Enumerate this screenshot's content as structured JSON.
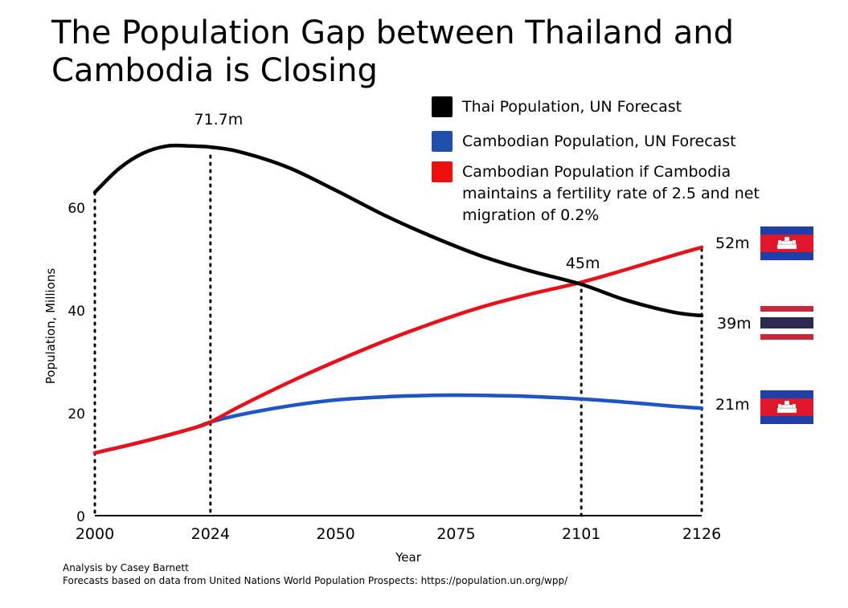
{
  "title": "The Population Gap between Thailand and Cambodia is Closing",
  "colors": {
    "thai": "#000000",
    "cambodia": "#1d55c4",
    "cambodia_alt": "#e8101a"
  },
  "legend": [
    {
      "label": "Thai Population, UN Forecast",
      "color": "#000000"
    },
    {
      "label": "Cambodian Population, UN Forecast",
      "color": "#1f4fa8"
    },
    {
      "label": "Cambodian Population if Cambodia maintains a fertility rate of 2.5 and net migration of 0.2%",
      "color": "#ee0f0f"
    }
  ],
  "chart_data": {
    "type": "line",
    "xlabel": "Year",
    "ylabel": "Population, Millions",
    "xlim": [
      2000,
      2126
    ],
    "ylim": [
      0,
      70
    ],
    "x_ticks": [
      2000,
      2024,
      2050,
      2075,
      2101,
      2126
    ],
    "y_ticks": [
      0,
      20,
      40,
      60
    ],
    "grid": false,
    "legend_position": "top-right",
    "series": [
      {
        "name": "Thai Population, UN Forecast",
        "color": "#000000",
        "x": [
          2000,
          2005,
          2010,
          2015,
          2020,
          2024,
          2030,
          2040,
          2050,
          2060,
          2070,
          2080,
          2090,
          2101,
          2110,
          2120,
          2126
        ],
        "y": [
          62.9,
          67.5,
          70.5,
          71.9,
          71.9,
          71.7,
          70.8,
          67.8,
          63.3,
          58.5,
          54.3,
          50.6,
          47.7,
          45.0,
          42.0,
          39.6,
          38.9
        ]
      },
      {
        "name": "Cambodian Population, UN Forecast",
        "color": "#1d55c4",
        "x": [
          2000,
          2010,
          2020,
          2024,
          2030,
          2040,
          2050,
          2060,
          2070,
          2080,
          2090,
          2101,
          2110,
          2120,
          2126
        ],
        "y": [
          12.2,
          14.4,
          16.9,
          18.2,
          19.6,
          21.3,
          22.5,
          23.1,
          23.4,
          23.4,
          23.2,
          22.7,
          22.1,
          21.3,
          20.9
        ]
      },
      {
        "name": "Cambodian Population if Cambodia maintains a fertility rate of 2.5 and net migration of 0.2%",
        "color": "#e8101a",
        "x": [
          2000,
          2010,
          2020,
          2024,
          2030,
          2040,
          2050,
          2060,
          2070,
          2080,
          2090,
          2101,
          2110,
          2120,
          2126
        ],
        "y": [
          12.2,
          14.4,
          16.9,
          18.2,
          21.2,
          25.8,
          30.0,
          33.9,
          37.4,
          40.5,
          43.0,
          45.4,
          47.8,
          50.6,
          52.2
        ]
      }
    ],
    "vlines": [
      2000,
      2024,
      2101,
      2126
    ],
    "annotations": [
      {
        "text": "71.7m",
        "x": 2024,
        "y": 71.7
      },
      {
        "text": "45m",
        "x": 2101,
        "y": 45.0
      }
    ],
    "end_labels": [
      {
        "text": "52m",
        "flag": "cambodia-flag"
      },
      {
        "text": "39m",
        "flag": "thailand-flag"
      },
      {
        "text": "21m",
        "flag": "cambodia-flag"
      }
    ]
  },
  "credits": {
    "analysis": "Analysis by Casey Barnett",
    "source": "Forecasts based on data from United Nations World Population Prospects: https://population.un.org/wpp/"
  }
}
